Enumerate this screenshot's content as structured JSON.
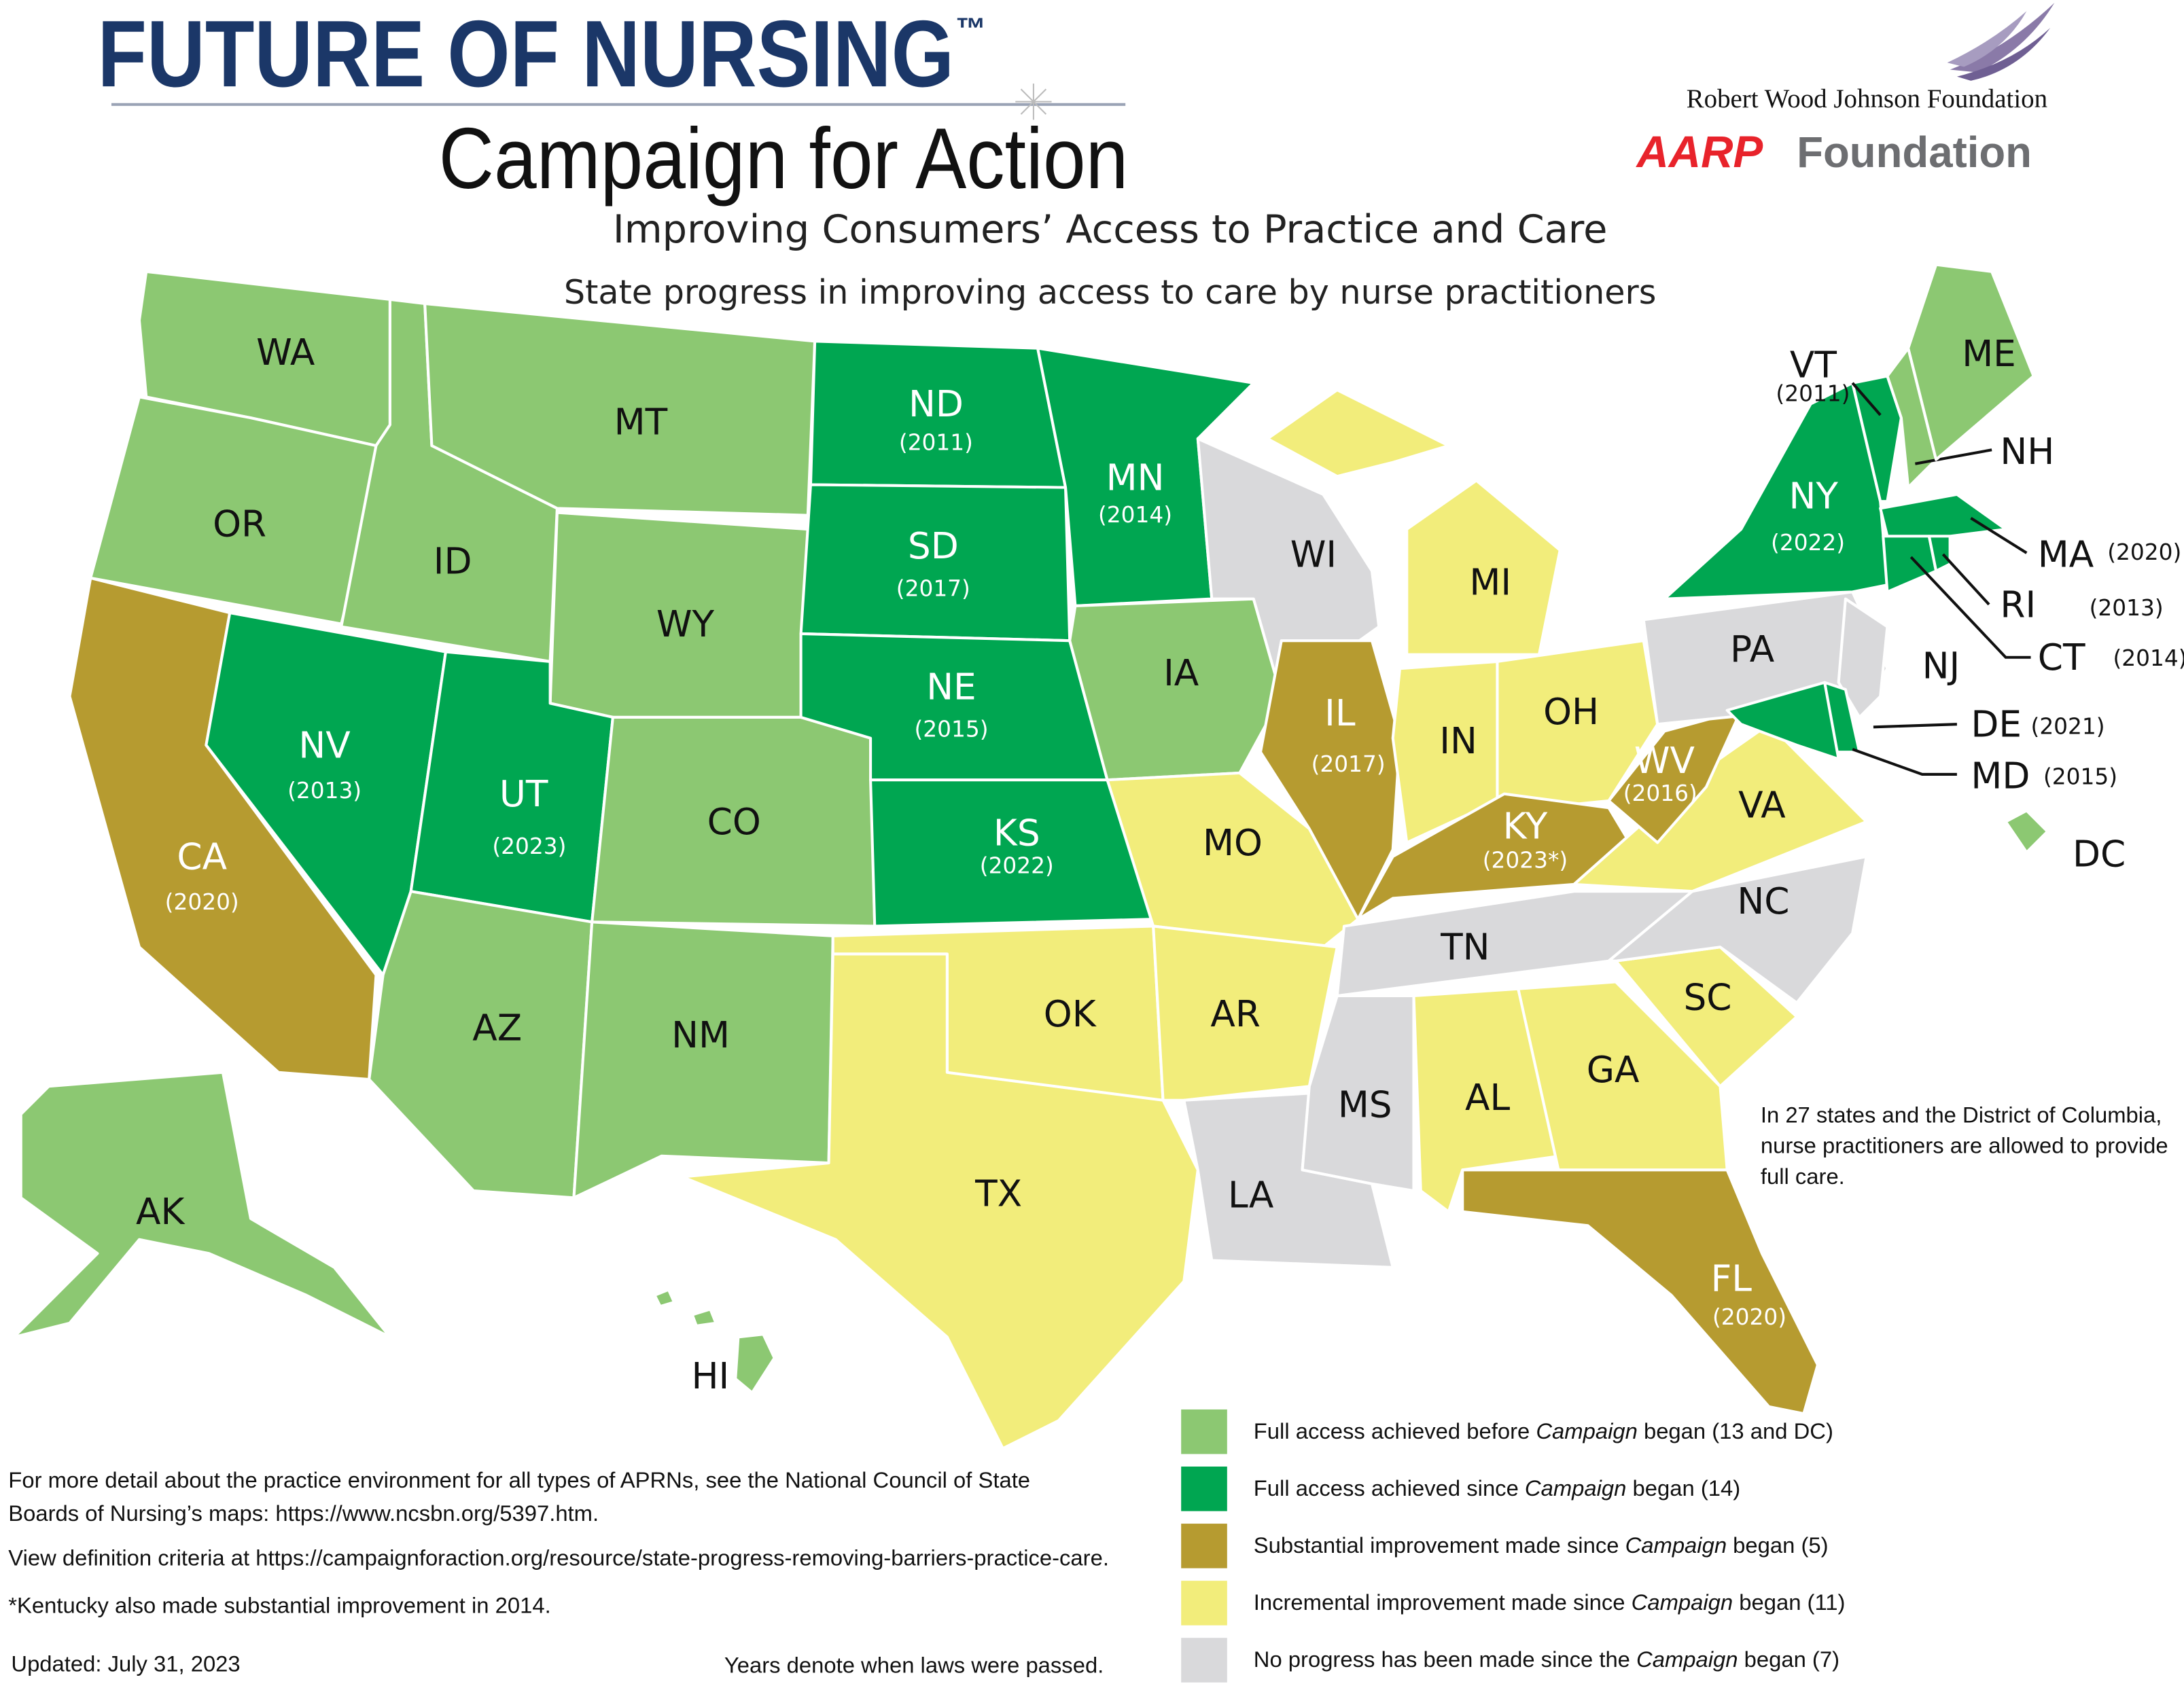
{
  "header": {
    "title": "FUTURE OF NURSING",
    "trademark": "™",
    "campaign": "Campaign for Action",
    "subtitle": "Improving Consumers’ Access to Practice and Care",
    "description": "State progress in improving access to care by nurse practitioners"
  },
  "sponsors": {
    "rwjf": "Robert Wood Johnson Foundation",
    "aarp": "AARP",
    "foundation": "Foundation"
  },
  "legend": [
    {
      "parts": [
        "Full access achieved before ",
        "Campaign",
        " began (13 and DC)"
      ],
      "color": "#8cc872"
    },
    {
      "parts": [
        "Full access achieved since ",
        "Campaign",
        " began (14)"
      ],
      "color": "#00a651"
    },
    {
      "parts": [
        "Substantial improvement made since ",
        "Campaign",
        " began (5)"
      ],
      "color": "#b69b30"
    },
    {
      "parts": [
        "Incremental improvement made since ",
        "Campaign",
        " began (11)"
      ],
      "color": "#f2ed7b"
    },
    {
      "parts": [
        "No progress has been made since the ",
        "Campaign",
        " began (7)"
      ],
      "color": "#d9d9db"
    }
  ],
  "states": [
    {
      "abbr": "WA",
      "category": 0
    },
    {
      "abbr": "OR",
      "category": 0
    },
    {
      "abbr": "CA",
      "year": "(2020)",
      "category": 2
    },
    {
      "abbr": "NV",
      "year": "(2013)",
      "category": 1
    },
    {
      "abbr": "ID",
      "category": 0
    },
    {
      "abbr": "MT",
      "category": 0
    },
    {
      "abbr": "WY",
      "category": 0
    },
    {
      "abbr": "UT",
      "year": "(2023)",
      "category": 1
    },
    {
      "abbr": "CO",
      "category": 0
    },
    {
      "abbr": "AZ",
      "category": 0
    },
    {
      "abbr": "NM",
      "category": 0
    },
    {
      "abbr": "ND",
      "year": "(2011)",
      "category": 1
    },
    {
      "abbr": "SD",
      "year": "(2017)",
      "category": 1
    },
    {
      "abbr": "NE",
      "year": "(2015)",
      "category": 1
    },
    {
      "abbr": "KS",
      "year": "(2022)",
      "category": 1
    },
    {
      "abbr": "OK",
      "category": 3
    },
    {
      "abbr": "TX",
      "category": 3
    },
    {
      "abbr": "MN",
      "year": "(2014)",
      "category": 1
    },
    {
      "abbr": "IA",
      "category": 0
    },
    {
      "abbr": "MO",
      "category": 3
    },
    {
      "abbr": "AR",
      "category": 3
    },
    {
      "abbr": "LA",
      "category": 4
    },
    {
      "abbr": "WI",
      "category": 4
    },
    {
      "abbr": "IL",
      "year": "(2017)",
      "category": 2
    },
    {
      "abbr": "MI",
      "category": 3
    },
    {
      "abbr": "IN",
      "category": 3
    },
    {
      "abbr": "OH",
      "category": 3
    },
    {
      "abbr": "KY",
      "year": "(2023*)",
      "category": 2
    },
    {
      "abbr": "TN",
      "category": 4
    },
    {
      "abbr": "MS",
      "category": 4
    },
    {
      "abbr": "AL",
      "category": 3
    },
    {
      "abbr": "GA",
      "category": 3
    },
    {
      "abbr": "FL",
      "year": "(2020)",
      "category": 2
    },
    {
      "abbr": "SC",
      "category": 3
    },
    {
      "abbr": "NC",
      "category": 4
    },
    {
      "abbr": "VA",
      "category": 3
    },
    {
      "abbr": "WV",
      "year": "(2016)",
      "category": 2
    },
    {
      "abbr": "PA",
      "category": 4
    },
    {
      "abbr": "NY",
      "year": "(2022)",
      "category": 1
    },
    {
      "abbr": "NJ",
      "category": 4
    },
    {
      "abbr": "DE",
      "year": "(2021)",
      "category": 1
    },
    {
      "abbr": "MD",
      "year": "(2015)",
      "category": 1
    },
    {
      "abbr": "VT",
      "year": "(2011)",
      "category": 1
    },
    {
      "abbr": "NH",
      "category": 0
    },
    {
      "abbr": "ME",
      "category": 0
    },
    {
      "abbr": "MA",
      "year": "(2020)",
      "category": 1
    },
    {
      "abbr": "CT",
      "year": "(2014)",
      "category": 1
    },
    {
      "abbr": "RI",
      "year": "(2013)",
      "category": 1
    },
    {
      "abbr": "DC",
      "category": 0
    },
    {
      "abbr": "AK",
      "category": 0
    },
    {
      "abbr": "HI",
      "category": 0
    }
  ],
  "callout": [
    "In 27 states and the District of Columbia,",
    "nurse practitioners are allowed to provide",
    "full care."
  ],
  "notes": [
    "For more detail about the practice environment for all types of APRNs, see the National Council of State",
    "Boards of Nursing’s maps: https://www.ncsbn.org/5397.htm.",
    "View definition criteria at https://campaignforaction.org/resource/state-progress-removing-barriers-practice-care.",
    "*Kentucky also made substantial improvement in 2014."
  ],
  "updated": "Updated: July 31, 2023",
  "years_note": "Years denote when laws were passed."
}
